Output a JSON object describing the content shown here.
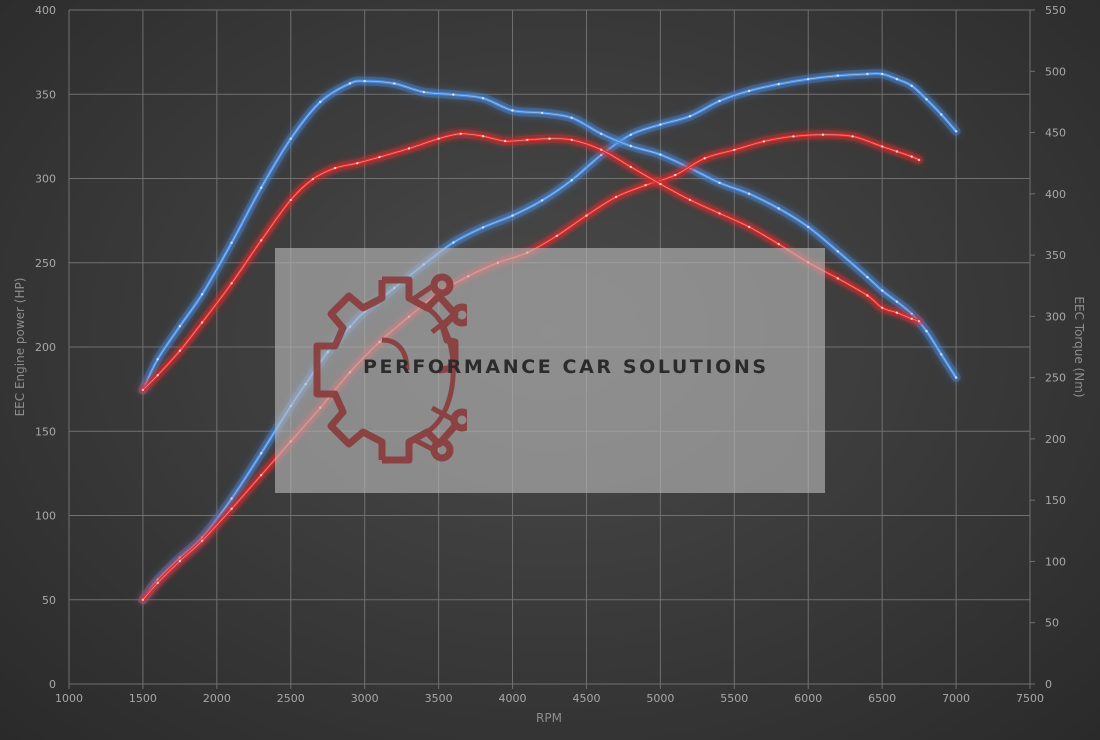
{
  "chart_data": {
    "type": "line",
    "xlabel": "RPM",
    "ylabel_left": "EEC Engine power (HP)",
    "ylabel_right": "EEC Torque (Nm)",
    "xlim": [
      1000,
      7500
    ],
    "ylim_left": [
      0,
      400
    ],
    "ylim_right": [
      0,
      550
    ],
    "x_ticks": [
      "1000",
      "1500",
      "2000",
      "2500",
      "3000",
      "3500",
      "4000",
      "4500",
      "5000",
      "5500",
      "6000",
      "6500",
      "7000",
      "7500"
    ],
    "y_left_ticks": [
      "0",
      "50",
      "100",
      "150",
      "200",
      "250",
      "300",
      "350",
      "400"
    ],
    "y_right_ticks": [
      "0",
      "50",
      "100",
      "150",
      "200",
      "250",
      "300",
      "350",
      "400",
      "450",
      "500",
      "550"
    ],
    "grid": true,
    "colors": {
      "tuned": "#4a8ce0",
      "stock": "#e02a2a"
    },
    "series": [
      {
        "group": "tuned",
        "axis": "left",
        "metric": "power",
        "x": [
          1500,
          1600,
          1750,
          1900,
          2100,
          2300,
          2500,
          2600,
          2750,
          2900,
          3000,
          3200,
          3400,
          3600,
          3800,
          4000,
          4200,
          4400,
          4600,
          4800,
          5000,
          5200,
          5400,
          5600,
          5800,
          6000,
          6200,
          6400,
          6500,
          6600,
          6700,
          6800,
          6900,
          7000
        ],
        "y": [
          50,
          62,
          75,
          87,
          110,
          137,
          165,
          178,
          197,
          212,
          221,
          235,
          249,
          262,
          271,
          278,
          287,
          299,
          314,
          326,
          332,
          337,
          346,
          352,
          356,
          359,
          361,
          362,
          362,
          359,
          355,
          347,
          338,
          328
        ]
      },
      {
        "group": "tuned",
        "axis": "right",
        "metric": "torque",
        "x": [
          1500,
          1600,
          1750,
          1900,
          2100,
          2300,
          2500,
          2700,
          2900,
          3000,
          3200,
          3400,
          3600,
          3800,
          4000,
          4200,
          4400,
          4600,
          4800,
          5000,
          5200,
          5400,
          5600,
          5800,
          6000,
          6200,
          6400,
          6500,
          6600,
          6700,
          6800,
          6900,
          7000
        ],
        "y": [
          240,
          265,
          292,
          318,
          360,
          405,
          445,
          475,
          490,
          492,
          490,
          483,
          481,
          478,
          468,
          466,
          462,
          449,
          439,
          432,
          421,
          409,
          400,
          388,
          373,
          353,
          332,
          321,
          312,
          302,
          288,
          269,
          250
        ]
      },
      {
        "group": "stock",
        "axis": "left",
        "metric": "power",
        "x": [
          1500,
          1600,
          1750,
          1900,
          2100,
          2300,
          2500,
          2700,
          2900,
          3100,
          3300,
          3500,
          3700,
          3900,
          4100,
          4300,
          4500,
          4700,
          4900,
          5100,
          5300,
          5500,
          5700,
          5900,
          6100,
          6300,
          6500,
          6600,
          6700,
          6750
        ],
        "y": [
          50,
          60,
          73,
          85,
          104,
          124,
          144,
          164,
          185,
          203,
          218,
          232,
          242,
          250,
          256,
          266,
          278,
          289,
          296,
          302,
          312,
          317,
          322,
          325,
          326,
          325,
          319,
          316,
          313,
          311
        ]
      },
      {
        "group": "stock",
        "axis": "right",
        "metric": "torque",
        "x": [
          1500,
          1600,
          1750,
          1900,
          2100,
          2300,
          2500,
          2650,
          2800,
          2950,
          3100,
          3300,
          3500,
          3650,
          3800,
          3950,
          4100,
          4250,
          4400,
          4600,
          4800,
          5000,
          5200,
          5400,
          5600,
          5800,
          6000,
          6200,
          6400,
          6500,
          6600,
          6700,
          6750
        ],
        "y": [
          240,
          252,
          272,
          295,
          327,
          362,
          395,
          412,
          421,
          425,
          430,
          437,
          445,
          449,
          447,
          443,
          444,
          445,
          444,
          436,
          422,
          408,
          395,
          384,
          373,
          359,
          344,
          331,
          317,
          307,
          303,
          298,
          296
        ]
      }
    ]
  },
  "watermark": {
    "text": "PERFORMANCE CAR SOLUTIONS",
    "logo_icon": "gear-circuit-icon",
    "logo_color": "#8b3a3a"
  }
}
